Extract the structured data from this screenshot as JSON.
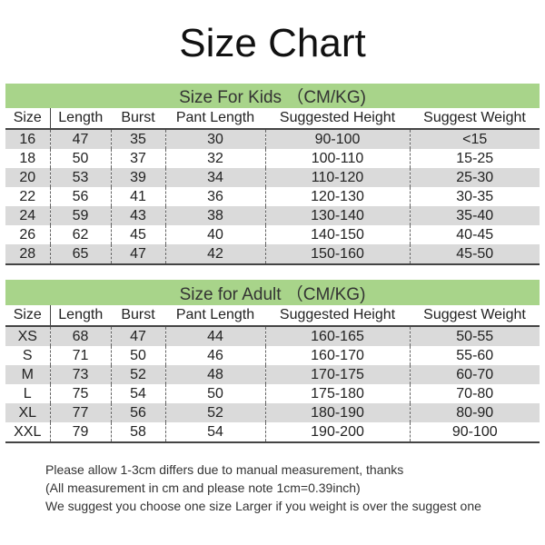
{
  "title": "Size Chart",
  "columns": [
    "Size",
    "Length",
    "Burst",
    "Pant Length",
    "Suggested Height",
    "Suggest Weight"
  ],
  "kids": {
    "heading": "Size For Kids （CM/KG)",
    "rows": [
      [
        "16",
        "47",
        "35",
        "30",
        "90-100",
        "<15"
      ],
      [
        "18",
        "50",
        "37",
        "32",
        "100-110",
        "15-25"
      ],
      [
        "20",
        "53",
        "39",
        "34",
        "110-120",
        "25-30"
      ],
      [
        "22",
        "56",
        "41",
        "36",
        "120-130",
        "30-35"
      ],
      [
        "24",
        "59",
        "43",
        "38",
        "130-140",
        "35-40"
      ],
      [
        "26",
        "62",
        "45",
        "40",
        "140-150",
        "40-45"
      ],
      [
        "28",
        "65",
        "47",
        "42",
        "150-160",
        "45-50"
      ]
    ]
  },
  "adult": {
    "heading": "Size for Adult （CM/KG)",
    "rows": [
      [
        "XS",
        "68",
        "47",
        "44",
        "160-165",
        "50-55"
      ],
      [
        "S",
        "71",
        "50",
        "46",
        "160-170",
        "55-60"
      ],
      [
        "M",
        "73",
        "52",
        "48",
        "170-175",
        "60-70"
      ],
      [
        "L",
        "75",
        "54",
        "50",
        "175-180",
        "70-80"
      ],
      [
        "XL",
        "77",
        "56",
        "52",
        "180-190",
        "80-90"
      ],
      [
        "XXL",
        "79",
        "58",
        "54",
        "190-200",
        "90-100"
      ]
    ]
  },
  "notes": [
    "Please allow 1-3cm differs due to manual measurement, thanks",
    "(All measurement in cm and please note 1cm=0.39inch)",
    "We suggest you choose one size Larger if you weight is over the suggest one"
  ],
  "colors": {
    "band": "#a8d48a",
    "stripe": "#dadada"
  }
}
